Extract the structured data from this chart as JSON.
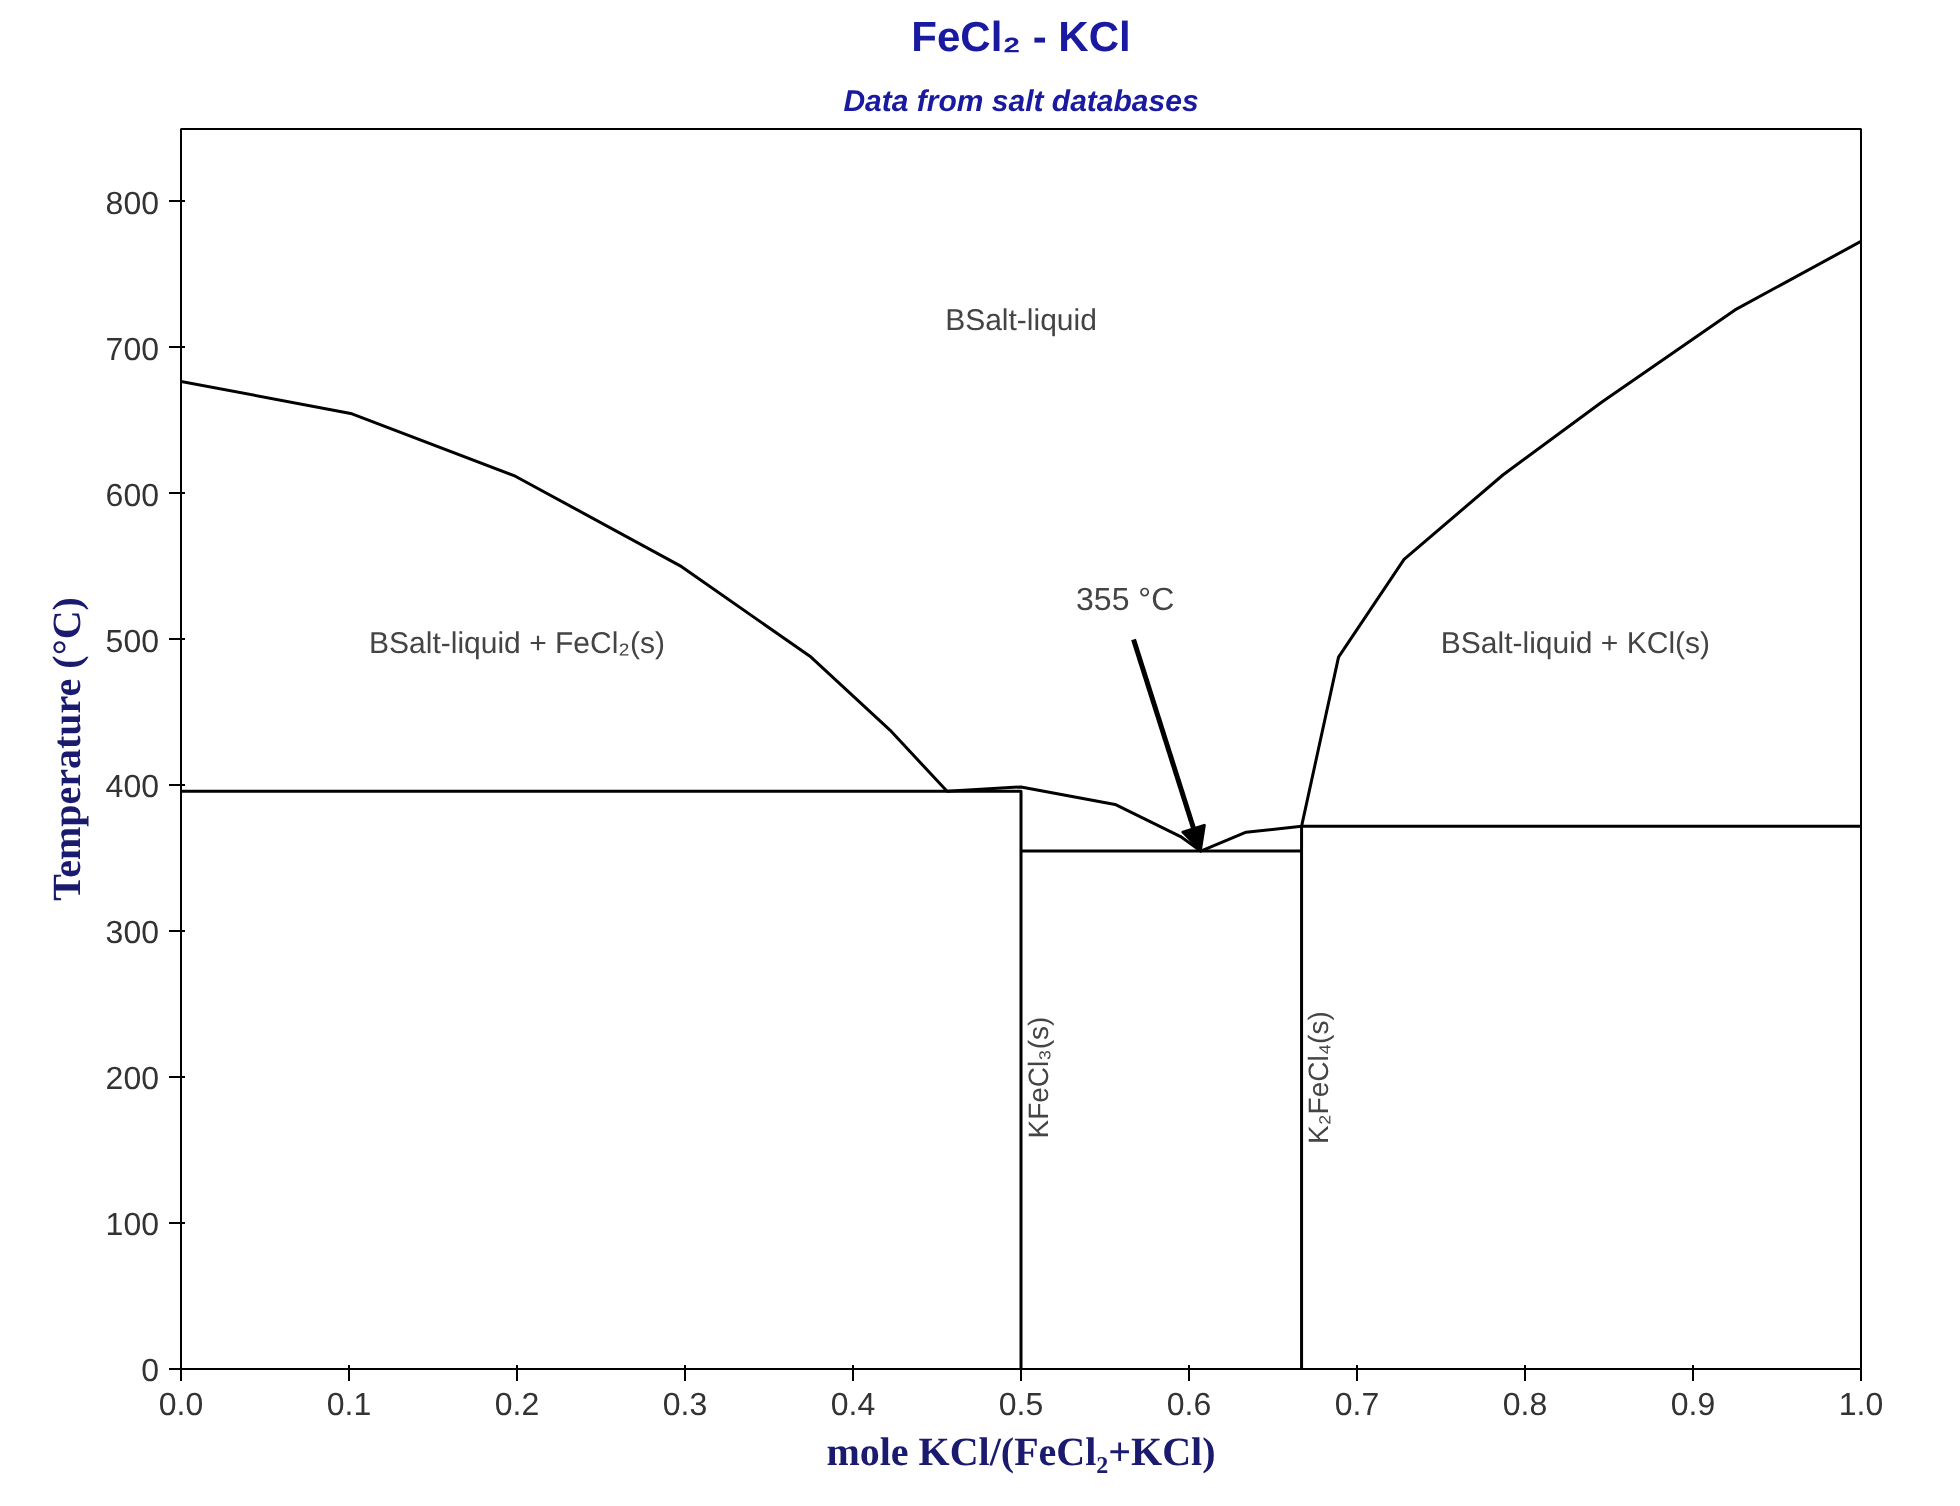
{
  "chart_data": {
    "type": "line",
    "title": "FeCl₂ - KCl",
    "subtitle": "Data from salt databases",
    "xlabel": "mole KCl/(FeCl₂+KCl)",
    "ylabel": "Temperature (°C)",
    "series": [
      {
        "color": "#000000",
        "x": [
          0,
          0.101,
          0.199,
          0.298,
          0.375,
          0.422,
          0.456,
          0.5,
          0.556,
          0.595,
          0.607,
          0.634,
          0.667,
          0.689,
          0.728,
          0.787,
          0.846,
          0.925,
          1
        ],
        "values": [
          677,
          655,
          612,
          550,
          488,
          438,
          396,
          399,
          387,
          365,
          355,
          368,
          372,
          488,
          555,
          613,
          663,
          726,
          773
        ]
      },
      {
        "color": "#000000",
        "x": [
          0,
          0.5,
          0.5
        ],
        "values": [
          396,
          396,
          0
        ]
      },
      {
        "color": "#000000",
        "x": [
          0.5,
          0.667
        ],
        "values": [
          355,
          355
        ]
      },
      {
        "color": "#000000",
        "x": [
          0.667,
          0.667,
          1
        ],
        "values": [
          0,
          372,
          372
        ]
      }
    ],
    "annotations": [
      "BSalt-liquid",
      "BSalt-liquid + FeCl₂(s)",
      "BSalt-liquid + KCl(s)",
      "KFeCl₃(s)",
      "K₂FeCl₄(s)",
      {
        "text": "355 °C",
        "x": 0.607,
        "y": 355
      }
    ],
    "xlim": [
      0,
      1
    ],
    "ylim": [
      0,
      850
    ],
    "xticks": [
      {
        "value": 0,
        "label": "0.0"
      },
      0.1,
      0.2,
      0.3,
      0.4,
      0.5,
      0.6,
      0.7,
      0.8,
      0.9,
      {
        "value": 1,
        "label": "1.0"
      }
    ],
    "yticks": [
      0,
      100,
      200,
      300,
      400,
      500,
      600,
      700,
      800
    ],
    "grid": false,
    "marker": "none",
    "line_style": "solid"
  }
}
